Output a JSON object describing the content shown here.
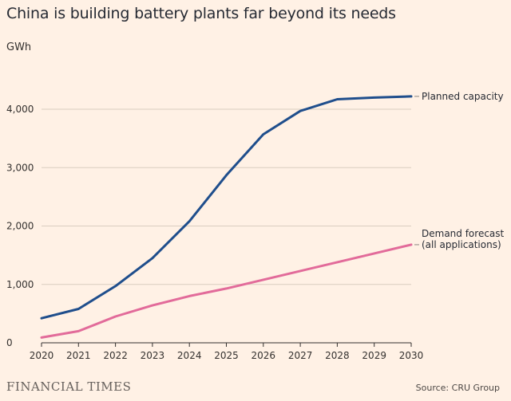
{
  "header": {
    "title": "China is building battery plants far beyond its needs",
    "unit": "GWh"
  },
  "footer": {
    "logo": "FINANCIAL TIMES",
    "source": "Source: CRU Group"
  },
  "colors": {
    "planned": "#1f4e8c",
    "demand": "#e26b9a",
    "grid": "#d9cdbf",
    "axis": "#33302e"
  },
  "chart_data": {
    "type": "line",
    "title": "China is building battery plants far beyond its needs",
    "xlabel": "",
    "ylabel": "GWh",
    "x": [
      2020,
      2021,
      2022,
      2023,
      2024,
      2025,
      2026,
      2027,
      2028,
      2029,
      2030
    ],
    "x_tick_labels": [
      "2020",
      "2021",
      "2022",
      "2023",
      "2024",
      "2025",
      "2026",
      "2027",
      "2028",
      "2029",
      "2030"
    ],
    "ylim": [
      0,
      4500
    ],
    "y_ticks": [
      0,
      1000,
      2000,
      3000,
      4000
    ],
    "y_tick_labels": [
      "0",
      "1,000",
      "2,000",
      "3,000",
      "4,000"
    ],
    "grid": true,
    "series": [
      {
        "name": "Planned capacity",
        "label_lines": [
          "Planned capacity"
        ],
        "values": [
          420,
          580,
          970,
          1450,
          2080,
          2870,
          3570,
          3970,
          4170,
          4200,
          4220
        ]
      },
      {
        "name": "Demand forecast (all applications)",
        "label_lines": [
          "Demand forecast",
          "(all applications)"
        ],
        "values": [
          90,
          200,
          450,
          640,
          800,
          930,
          1080,
          1230,
          1380,
          1530,
          1680
        ]
      }
    ]
  }
}
